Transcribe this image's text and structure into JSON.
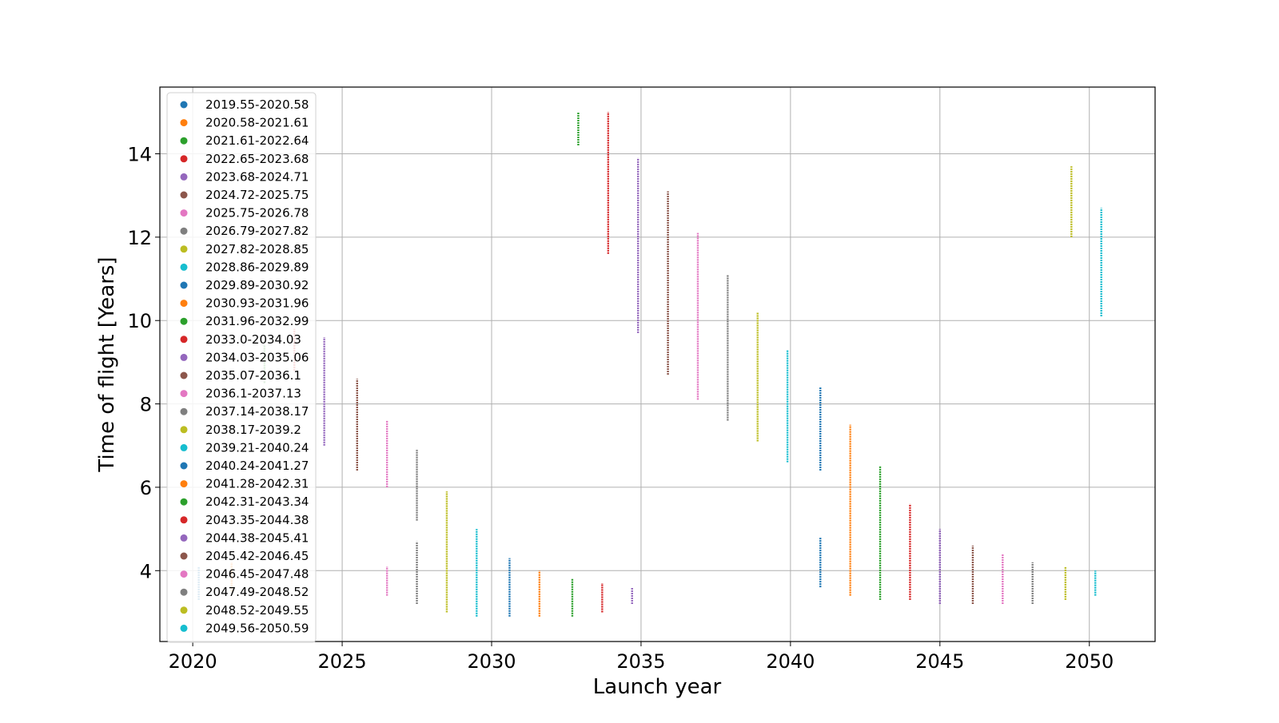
{
  "chart_data": {
    "type": "scatter",
    "xlabel": "Launch year",
    "ylabel": "Time of flight [Years]",
    "xlim": [
      2018.9,
      2052.2
    ],
    "ylim": [
      2.3,
      15.6
    ],
    "x_ticks": [
      2020,
      2025,
      2030,
      2035,
      2040,
      2045,
      2050
    ],
    "y_ticks": [
      4,
      6,
      8,
      10,
      12,
      14
    ],
    "grid": true,
    "legend_position": "upper-left",
    "palette": [
      "#1f77b4",
      "#ff7f0e",
      "#2ca02c",
      "#d62728",
      "#9467bd",
      "#8c564b",
      "#e377c2",
      "#7f7f7f",
      "#bcbd22",
      "#17becf"
    ],
    "series": [
      {
        "name": "2019.55-2020.58",
        "segments": [
          [
            2020.2,
            3.3,
            4.1
          ]
        ]
      },
      {
        "name": "2020.58-2021.61",
        "segments": [
          [
            2021.3,
            3.5,
            4.2
          ]
        ]
      },
      {
        "name": "2021.61-2022.64",
        "segments": [
          [
            2022.4,
            8.5,
            9.4
          ],
          [
            2032.9,
            14.2,
            15.0
          ]
        ]
      },
      {
        "name": "2022.65-2023.68",
        "segments": [
          [
            2023.4,
            8.8,
            9.8
          ],
          [
            2033.9,
            11.6,
            15.0
          ]
        ]
      },
      {
        "name": "2023.68-2024.71",
        "segments": [
          [
            2024.4,
            7.0,
            9.6
          ],
          [
            2034.9,
            9.7,
            13.9
          ]
        ]
      },
      {
        "name": "2024.72-2025.75",
        "segments": [
          [
            2025.5,
            6.4,
            8.6
          ],
          [
            2035.9,
            8.7,
            13.1
          ]
        ]
      },
      {
        "name": "2025.75-2026.78",
        "segments": [
          [
            2026.5,
            6.0,
            7.6
          ],
          [
            2026.5,
            3.4,
            4.1
          ],
          [
            2036.9,
            8.1,
            12.1
          ]
        ]
      },
      {
        "name": "2026.79-2027.82",
        "segments": [
          [
            2027.5,
            5.2,
            6.9
          ],
          [
            2027.5,
            3.2,
            4.7
          ],
          [
            2037.9,
            7.6,
            11.1
          ]
        ]
      },
      {
        "name": "2027.82-2028.85",
        "segments": [
          [
            2028.5,
            3.0,
            5.9
          ],
          [
            2038.9,
            7.1,
            10.2
          ]
        ]
      },
      {
        "name": "2028.86-2029.89",
        "segments": [
          [
            2029.5,
            2.9,
            5.0
          ],
          [
            2039.9,
            6.6,
            9.3
          ]
        ]
      },
      {
        "name": "2029.89-2030.92",
        "segments": [
          [
            2030.6,
            2.9,
            4.3
          ],
          [
            2041.0,
            6.4,
            8.4
          ],
          [
            2041.0,
            3.6,
            4.8
          ]
        ]
      },
      {
        "name": "2030.93-2031.96",
        "segments": [
          [
            2031.6,
            2.9,
            4.0
          ],
          [
            2042.0,
            3.4,
            7.5
          ]
        ]
      },
      {
        "name": "2031.96-2032.99",
        "segments": [
          [
            2032.7,
            2.9,
            3.8
          ],
          [
            2043.0,
            3.3,
            6.5
          ]
        ]
      },
      {
        "name": "2033.0-2034.03",
        "segments": [
          [
            2033.7,
            3.0,
            3.7
          ],
          [
            2044.0,
            3.3,
            5.6
          ]
        ]
      },
      {
        "name": "2034.03-2035.06",
        "segments": [
          [
            2034.7,
            3.2,
            3.6
          ],
          [
            2045.0,
            3.2,
            5.0
          ]
        ]
      },
      {
        "name": "2035.07-2036.1",
        "segments": [
          [
            2046.1,
            3.2,
            4.6
          ]
        ]
      },
      {
        "name": "2036.1-2037.13",
        "segments": [
          [
            2047.1,
            3.2,
            4.4
          ]
        ]
      },
      {
        "name": "2037.14-2038.17",
        "segments": [
          [
            2048.1,
            3.2,
            4.2
          ]
        ]
      },
      {
        "name": "2038.17-2039.2",
        "segments": [
          [
            2049.2,
            3.3,
            4.1
          ],
          [
            2049.4,
            12.0,
            13.7
          ]
        ]
      },
      {
        "name": "2039.21-2040.24",
        "segments": [
          [
            2050.2,
            3.4,
            4.0
          ],
          [
            2050.4,
            10.1,
            12.7
          ]
        ]
      },
      {
        "name": "2040.24-2041.27",
        "segments": []
      },
      {
        "name": "2041.28-2042.31",
        "segments": []
      },
      {
        "name": "2042.31-2043.34",
        "segments": []
      },
      {
        "name": "2043.35-2044.38",
        "segments": []
      },
      {
        "name": "2044.38-2045.41",
        "segments": []
      },
      {
        "name": "2045.42-2046.45",
        "segments": []
      },
      {
        "name": "2046.45-2047.48",
        "segments": []
      },
      {
        "name": "2047.49-2048.52",
        "segments": []
      },
      {
        "name": "2048.52-2049.55",
        "segments": []
      },
      {
        "name": "2049.56-2050.59",
        "segments": []
      }
    ]
  }
}
